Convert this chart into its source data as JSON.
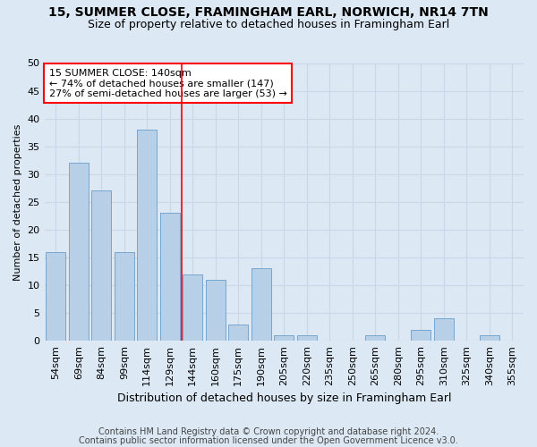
{
  "title1": "15, SUMMER CLOSE, FRAMINGHAM EARL, NORWICH, NR14 7TN",
  "title2": "Size of property relative to detached houses in Framingham Earl",
  "xlabel": "Distribution of detached houses by size in Framingham Earl",
  "ylabel": "Number of detached properties",
  "footer1": "Contains HM Land Registry data © Crown copyright and database right 2024.",
  "footer2": "Contains public sector information licensed under the Open Government Licence v3.0.",
  "categories": [
    "54sqm",
    "69sqm",
    "84sqm",
    "99sqm",
    "114sqm",
    "129sqm",
    "144sqm",
    "160sqm",
    "175sqm",
    "190sqm",
    "205sqm",
    "220sqm",
    "235sqm",
    "250sqm",
    "265sqm",
    "280sqm",
    "295sqm",
    "310sqm",
    "325sqm",
    "340sqm",
    "355sqm"
  ],
  "values": [
    16,
    32,
    27,
    16,
    38,
    23,
    12,
    11,
    3,
    13,
    1,
    1,
    0,
    0,
    1,
    0,
    2,
    4,
    0,
    1,
    0
  ],
  "bar_color": "#b8cfe8",
  "bar_edge_color": "#6b9dc8",
  "grid_color": "#c8d8e8",
  "background_color": "#dce8f4",
  "vline_x": 6,
  "vline_color": "red",
  "ylim": [
    0,
    50
  ],
  "yticks": [
    0,
    5,
    10,
    15,
    20,
    25,
    30,
    35,
    40,
    45,
    50
  ],
  "annotation_text": "15 SUMMER CLOSE: 140sqm\n← 74% of detached houses are smaller (147)\n27% of semi-detached houses are larger (53) →",
  "annotation_box_color": "white",
  "annotation_box_edge": "red",
  "title1_fontsize": 10,
  "title2_fontsize": 9,
  "ylabel_fontsize": 8,
  "xlabel_fontsize": 9,
  "tick_fontsize": 8,
  "annot_fontsize": 8,
  "footer_fontsize": 7
}
